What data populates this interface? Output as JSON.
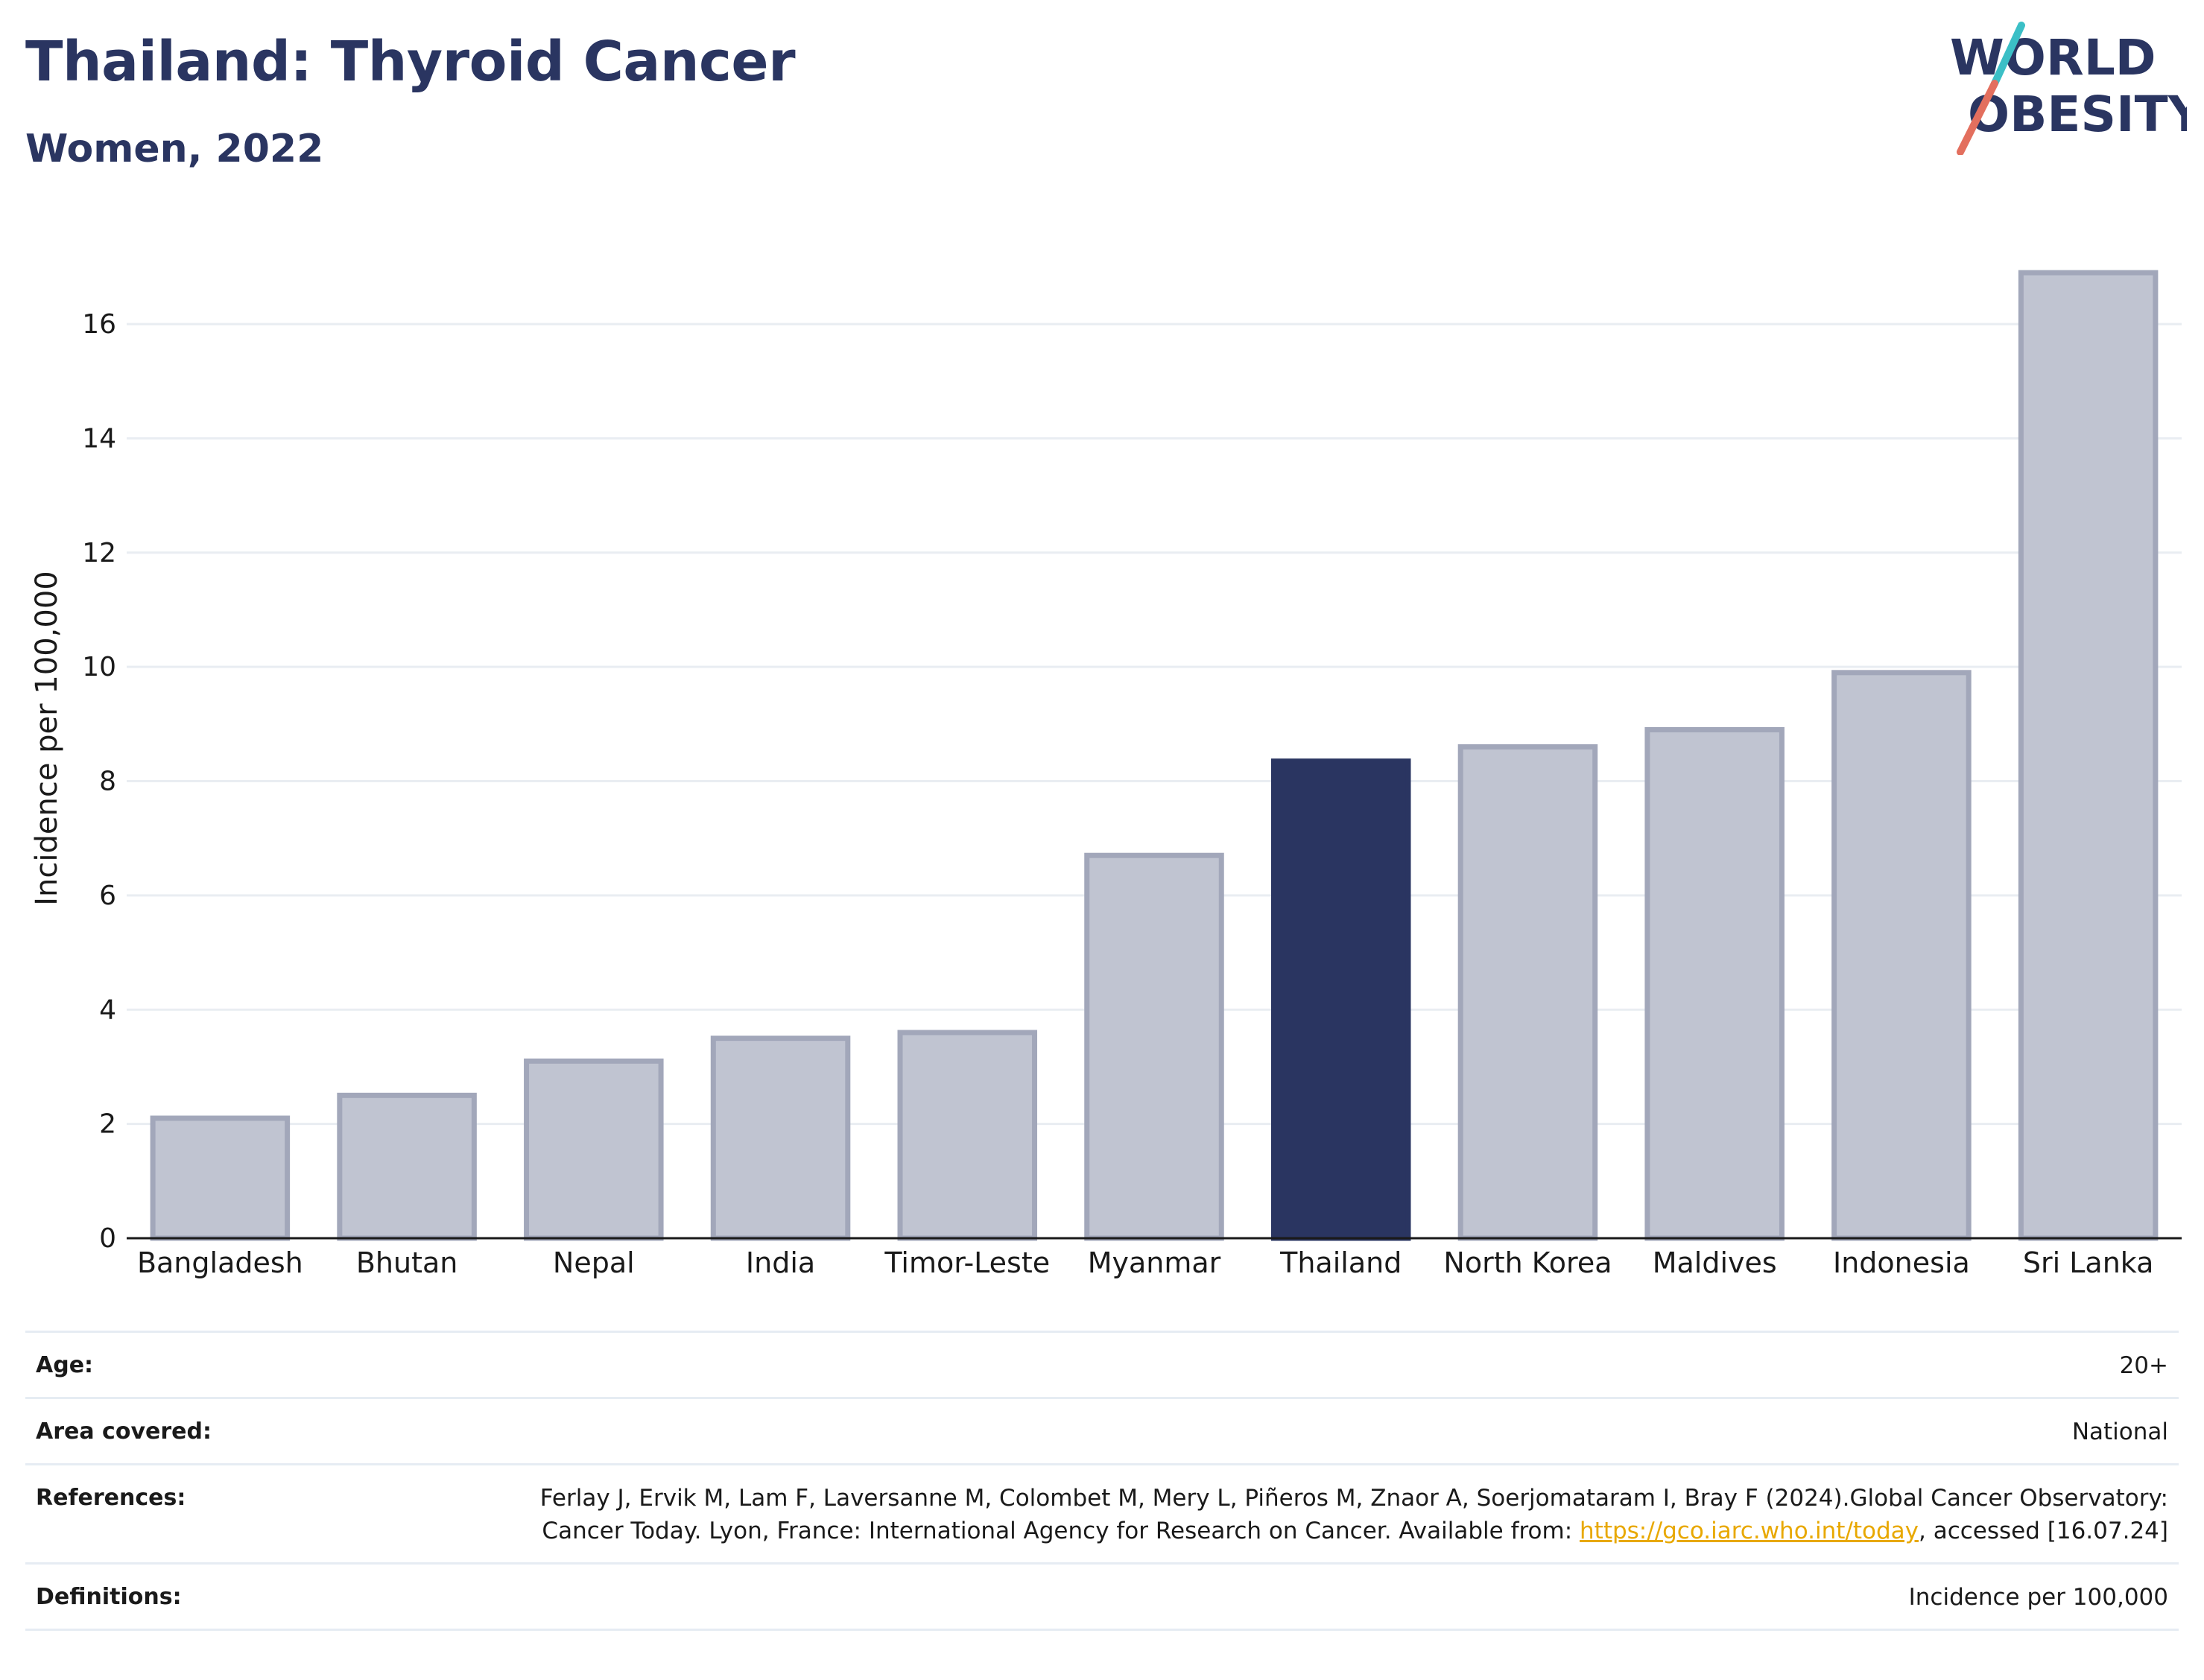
{
  "header": {
    "title": "Thailand: Thyroid Cancer",
    "subtitle": "Women, 2022"
  },
  "logo": {
    "line1": "WORLD",
    "line2": "OBESITY",
    "colors": {
      "text": "#2a3561",
      "slash_teal": "#3bbfc6",
      "slash_coral": "#e36f5e"
    }
  },
  "chart_data": {
    "type": "bar",
    "categories": [
      "Bangladesh",
      "Bhutan",
      "Nepal",
      "India",
      "Timor-Leste",
      "Myanmar",
      "Thailand",
      "North Korea",
      "Maldives",
      "Indonesia",
      "Sri Lanka"
    ],
    "values": [
      2.1,
      2.5,
      3.1,
      3.5,
      3.6,
      6.7,
      8.35,
      8.6,
      8.9,
      9.9,
      16.9
    ],
    "highlight": "Thailand",
    "ylabel": "Incidence per 100,000",
    "xlabel": "",
    "ylim": [
      0,
      17.5
    ],
    "yticks": [
      0,
      2,
      4,
      6,
      8,
      10,
      12,
      14,
      16
    ],
    "grid": true,
    "colors": {
      "bar": "#c0c4d1",
      "bar_border": "#a2a7ba",
      "highlight": "#2a3561",
      "grid": "#e9edf2",
      "axis": "#1a1a1a"
    }
  },
  "info": {
    "age": {
      "label": "Age:",
      "value": "20+"
    },
    "area": {
      "label": "Area covered:",
      "value": "National"
    },
    "references": {
      "label": "References:",
      "text_before": "Ferlay J, Ervik M, Lam F, Laversanne M, Colombet M, Mery L, Piñeros M, Znaor A, Soerjomataram I, Bray F (2024).Global Cancer Observatory: Cancer Today. Lyon, France: International Agency for Research on Cancer. Available from: ",
      "link": "https://gco.iarc.who.int/today",
      "text_after": ", accessed [16.07.24]"
    },
    "definitions": {
      "label": "Definitions:",
      "value": "Incidence per 100,000"
    }
  }
}
